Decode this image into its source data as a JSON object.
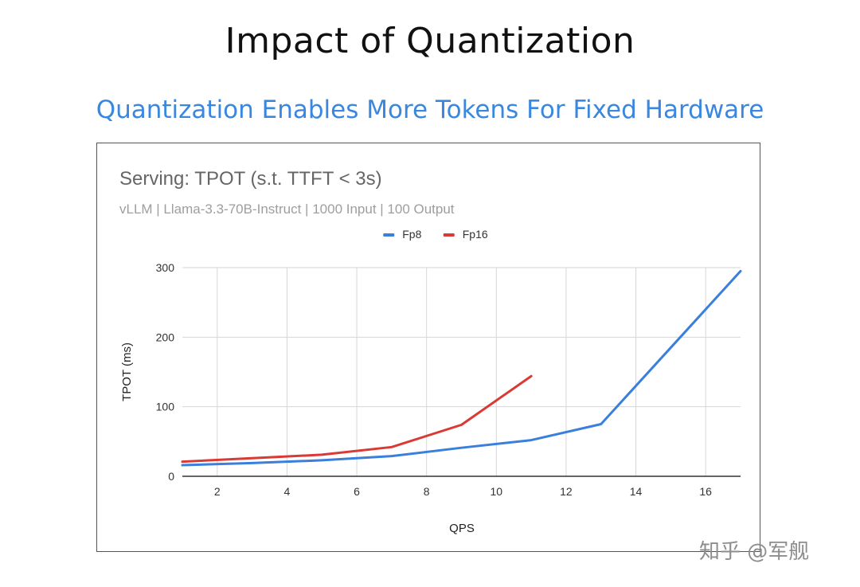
{
  "page": {
    "title": "Impact of Quantization",
    "subtitle": "Quantization Enables More Tokens For Fixed Hardware",
    "watermark": "知乎 @军舰"
  },
  "colors": {
    "title": "#111111",
    "subtitle": "#3a87e0",
    "fp8": "#3a7fdc",
    "fp16": "#d93a35"
  },
  "chart_data": {
    "type": "line",
    "title": "Serving: TPOT (s.t. TTFT < 3s)",
    "subtitle": "vLLM | Llama-3.3-70B-Instruct | 1000 Input | 100 Output",
    "xlabel": "QPS",
    "ylabel": "TPOT (ms)",
    "xlim": [
      1,
      17
    ],
    "ylim": [
      0,
      300
    ],
    "xticks": [
      2,
      4,
      6,
      8,
      10,
      12,
      14,
      16
    ],
    "yticks": [
      0,
      100,
      200,
      300
    ],
    "grid": true,
    "legend_position": "top-center",
    "series": [
      {
        "name": "Fp8",
        "color": "#3a7fdc",
        "x": [
          1,
          3,
          5,
          7,
          9,
          11,
          13,
          15,
          17
        ],
        "y": [
          16,
          19,
          23,
          29,
          41,
          52,
          75,
          185,
          295
        ]
      },
      {
        "name": "Fp16",
        "color": "#d93a35",
        "x": [
          1,
          3,
          5,
          7,
          9,
          11
        ],
        "y": [
          21,
          26,
          31,
          42,
          74,
          144
        ]
      }
    ]
  }
}
